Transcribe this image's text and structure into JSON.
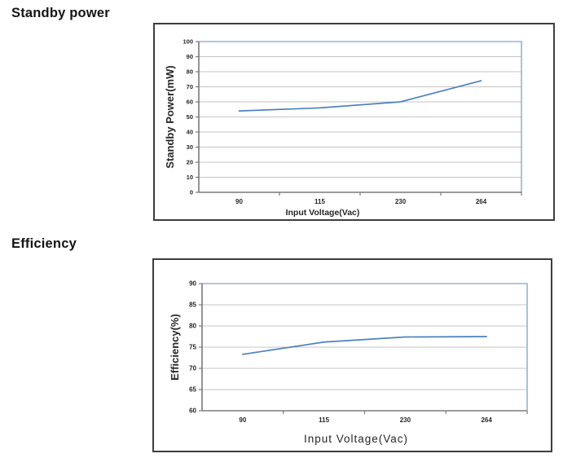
{
  "sections": [
    {
      "title": "Standby power"
    },
    {
      "title": "Efficiency"
    }
  ],
  "colors": {
    "line": "#4f81bd",
    "plot_border": "#95b3d7",
    "gridline": "#c4c4c4",
    "axis": "#7a7a7a",
    "text": "#262626",
    "frame_border": "#3d3d3d",
    "background": "#ffffff"
  },
  "chart_data": [
    {
      "type": "line",
      "title": "Standby power",
      "categories": [
        "90",
        "115",
        "230",
        "264"
      ],
      "values": [
        54,
        56,
        60,
        74
      ],
      "xlabel": "Input Voltage(Vac)",
      "ylabel": "Standby Power(mW)",
      "ylim": [
        0,
        100
      ],
      "ytick_step": 10,
      "grid": true,
      "legend": "none",
      "line_color": "#4f81bd"
    },
    {
      "type": "line",
      "title": "Efficiency",
      "categories": [
        "90",
        "115",
        "230",
        "264"
      ],
      "values": [
        73.3,
        76.2,
        77.4,
        77.5
      ],
      "xlabel": "Input Voltage(Vac)",
      "ylabel": "Efficiency(%)",
      "ylim": [
        60,
        90
      ],
      "ytick_step": 5,
      "grid": true,
      "legend": "none",
      "line_color": "#4f81bd"
    }
  ]
}
